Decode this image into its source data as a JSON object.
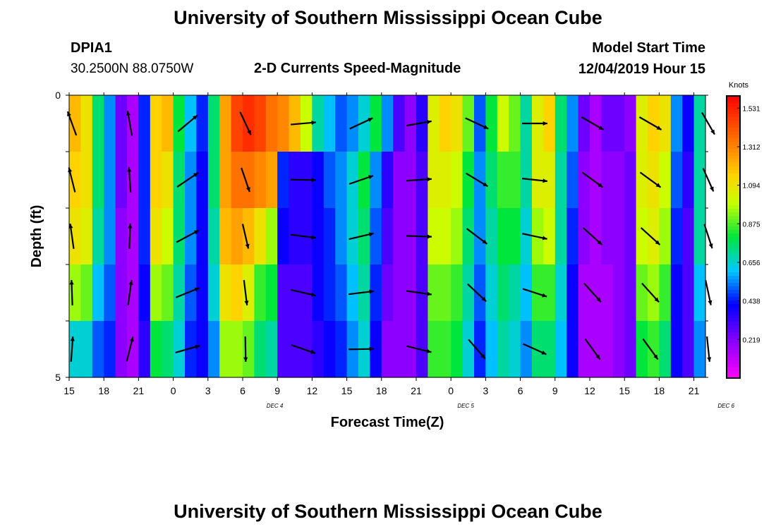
{
  "header": {
    "title": "University of Southern Mississippi Ocean Cube",
    "station_id": "DPIA1",
    "station_coords": "30.2500N 88.0750W",
    "chart_title": "2-D Currents Speed-Magnitude",
    "model_label": "Model Start Time",
    "model_value": "12/04/2019 Hour 15"
  },
  "footer": {
    "title": "University of Southern Mississippi Ocean Cube"
  },
  "chart_data": {
    "type": "heatmap",
    "title": "2-D Currents Speed-Magnitude",
    "xlabel": "Forecast Time(Z)",
    "ylabel": "Depth (ft)",
    "ylim": [
      0,
      5
    ],
    "y_ticks": [
      "0",
      "5"
    ],
    "x_ticks": [
      "15",
      "18",
      "21",
      "0",
      "3",
      "6",
      "9",
      "12",
      "15",
      "18",
      "21",
      "0",
      "3",
      "6",
      "9",
      "12",
      "15",
      "18",
      "21"
    ],
    "date_labels": [
      {
        "text": "DEC 4",
        "at_hour": 19.5
      },
      {
        "text": "DEC 5",
        "at_hour": 36
      },
      {
        "text": "DEC 6",
        "at_hour": 58.5
      }
    ],
    "forecast_hours": [
      0,
      1,
      2,
      3,
      4,
      5,
      6,
      7,
      8,
      9,
      10,
      11,
      12,
      13,
      14,
      15,
      16,
      17,
      18,
      19,
      20,
      21,
      22,
      23,
      24,
      25,
      26,
      27,
      28,
      29,
      30,
      31,
      32,
      33,
      34,
      35,
      36,
      37,
      38,
      39,
      40,
      41,
      42,
      43,
      44,
      45,
      46,
      47,
      48,
      49,
      50,
      51,
      52,
      53,
      54
    ],
    "depth_layers": [
      0.5,
      1.5,
      2.5,
      3.5,
      4.5
    ],
    "speed_knots": [
      [
        1.2,
        1.1,
        0.75,
        0.55,
        0.25,
        0.15,
        0.45,
        1.15,
        1.2,
        0.8,
        0.6,
        0.45,
        0.75,
        1.25,
        1.45,
        1.5,
        1.45,
        1.35,
        1.3,
        1.2,
        1.0,
        0.7,
        0.6,
        0.5,
        0.55,
        0.65,
        0.8,
        0.55,
        0.3,
        0.2,
        0.35,
        1.05,
        1.15,
        1.1,
        0.9,
        0.5,
        0.8,
        1.0,
        0.9,
        0.7,
        1.05,
        1.15,
        0.75,
        0.55,
        0.25,
        0.15,
        0.25,
        0.25,
        0.2,
        1.05,
        1.15,
        1.1,
        0.55,
        0.4,
        0.7
      ],
      [
        1.15,
        1.1,
        0.75,
        0.55,
        0.25,
        0.15,
        0.45,
        1.15,
        1.1,
        0.75,
        0.55,
        0.4,
        0.75,
        1.25,
        1.35,
        1.35,
        1.3,
        1.25,
        0.45,
        0.35,
        0.35,
        0.4,
        0.5,
        0.55,
        0.65,
        0.8,
        0.55,
        0.35,
        0.2,
        0.2,
        0.3,
        1.05,
        1.05,
        1.0,
        0.8,
        0.55,
        0.75,
        0.85,
        0.85,
        0.7,
        1.05,
        1.05,
        0.7,
        0.5,
        0.2,
        0.15,
        0.2,
        0.2,
        0.25,
        1.05,
        1.1,
        1.0,
        0.5,
        0.35,
        0.7
      ],
      [
        1.1,
        1.05,
        0.7,
        0.55,
        0.2,
        0.15,
        0.45,
        1.1,
        1.0,
        0.75,
        0.55,
        0.4,
        0.7,
        1.2,
        1.25,
        1.2,
        1.1,
        0.95,
        0.4,
        0.35,
        0.35,
        0.4,
        0.45,
        0.55,
        0.65,
        0.75,
        0.5,
        0.3,
        0.2,
        0.2,
        0.3,
        1.0,
        1.0,
        0.95,
        0.75,
        0.55,
        0.7,
        0.8,
        0.8,
        0.65,
        0.95,
        1.0,
        0.7,
        0.45,
        0.2,
        0.15,
        0.2,
        0.2,
        0.25,
        1.0,
        1.05,
        0.95,
        0.45,
        0.3,
        0.7
      ],
      [
        0.95,
        0.9,
        0.6,
        0.5,
        0.2,
        0.15,
        0.4,
        0.95,
        0.9,
        0.7,
        0.5,
        0.4,
        0.65,
        1.1,
        1.15,
        1.05,
        0.85,
        0.8,
        0.3,
        0.3,
        0.3,
        0.4,
        0.45,
        0.5,
        0.6,
        0.7,
        0.45,
        0.25,
        0.2,
        0.2,
        0.3,
        0.9,
        0.9,
        0.85,
        0.7,
        0.5,
        0.65,
        0.75,
        0.7,
        0.6,
        0.85,
        0.85,
        0.65,
        0.4,
        0.15,
        0.15,
        0.15,
        0.2,
        0.25,
        0.9,
        0.95,
        0.85,
        0.4,
        0.3,
        0.6
      ],
      [
        0.65,
        0.65,
        0.5,
        0.45,
        0.2,
        0.15,
        0.35,
        0.8,
        0.75,
        0.65,
        0.45,
        0.4,
        0.55,
        0.95,
        0.95,
        0.9,
        0.75,
        0.7,
        0.3,
        0.3,
        0.3,
        0.35,
        0.4,
        0.45,
        0.55,
        0.65,
        0.4,
        0.2,
        0.2,
        0.2,
        0.3,
        0.85,
        0.85,
        0.8,
        0.65,
        0.45,
        0.6,
        0.7,
        0.65,
        0.55,
        0.75,
        0.75,
        0.6,
        0.4,
        0.15,
        0.15,
        0.15,
        0.2,
        0.25,
        0.8,
        0.85,
        0.75,
        0.4,
        0.3,
        0.55
      ]
    ],
    "arrow_hours": [
      0,
      5,
      10,
      15,
      20,
      25,
      30,
      35,
      40,
      45,
      50,
      55
    ],
    "colorbar": {
      "label": "Knots",
      "min": 0.0,
      "max": 1.6,
      "tick_values": [
        "1.531",
        "1.312",
        "1.094",
        "0.875",
        "0.656",
        "0.438",
        "0.219"
      ]
    },
    "grid": false,
    "legend": "right"
  }
}
